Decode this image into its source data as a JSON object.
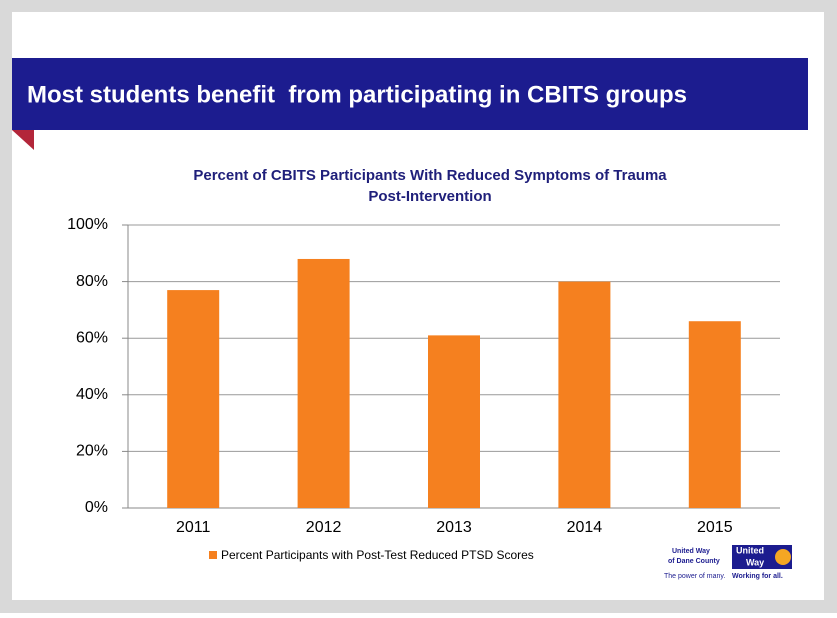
{
  "slide_title": "Most students benefit  from participating in CBITS groups",
  "chart_data": {
    "type": "bar",
    "title": [
      "Percent of CBITS Participants With Reduced Symptoms of Trauma",
      "Post-Intervention"
    ],
    "categories": [
      "2011",
      "2012",
      "2013",
      "2014",
      "2015"
    ],
    "series": [
      {
        "name": "Percent Participants with Post-Test Reduced PTSD Scores",
        "color": "#f5801f",
        "values": [
          77,
          88,
          61,
          80,
          66
        ]
      }
    ],
    "ylim": [
      0,
      100
    ],
    "yticks": [
      {
        "value": 0,
        "label": "0%"
      },
      {
        "value": 20,
        "label": "20%"
      },
      {
        "value": 40,
        "label": "40%"
      },
      {
        "value": 60,
        "label": "60%"
      },
      {
        "value": 80,
        "label": "80%"
      },
      {
        "value": 100,
        "label": "100%"
      }
    ],
    "grid": true,
    "legend": "bottom"
  },
  "logo": {
    "line1": "United Way",
    "line2": "of Dane County",
    "badge1": "United",
    "badge2": "Way",
    "tagline1": "The power of many.",
    "tagline2": "Working for all."
  }
}
